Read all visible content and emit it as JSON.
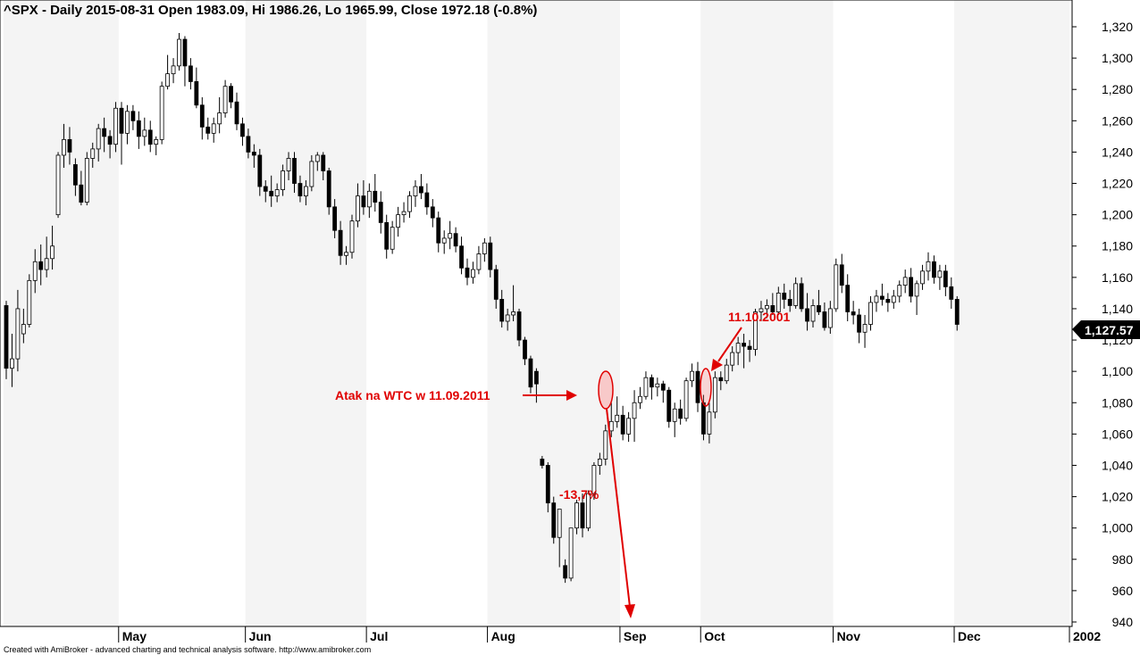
{
  "chart_data": {
    "type": "candlestick",
    "title": "^SPX - Daily 2015-08-31 Open 1983.09, Hi 1986.26, Lo 1965.99, Close 1972.18 (-0.8%)",
    "credit": "Created with AmiBroker - advanced charting and technical analysis software. http://www.amibroker.com",
    "ylim": [
      930,
      1335
    ],
    "yticks": [
      940,
      960,
      980,
      1000,
      1020,
      1040,
      1060,
      1080,
      1100,
      1120,
      1140,
      1160,
      1180,
      1200,
      1220,
      1240,
      1260,
      1280,
      1300,
      1320
    ],
    "ytick_labels": [
      "940",
      "960",
      "980",
      "1,000",
      "1,020",
      "1,040",
      "1,060",
      "1,080",
      "1,100",
      "1,120",
      "1,140",
      "1,160",
      "1,180",
      "1,200",
      "1,220",
      "1,240",
      "1,260",
      "1,280",
      "1,300",
      "1,320"
    ],
    "months": [
      {
        "label": "May",
        "index": 20
      },
      {
        "label": "Jun",
        "index": 42
      },
      {
        "label": "Jul",
        "index": 63
      },
      {
        "label": "Aug",
        "index": 84
      },
      {
        "label": "Sep",
        "index": 107
      },
      {
        "label": "Oct",
        "index": 121
      },
      {
        "label": "Nov",
        "index": 144
      },
      {
        "label": "Dec",
        "index": 165
      },
      {
        "label": "2002",
        "index": 185
      }
    ],
    "shaded_ranges": [
      [
        0,
        19
      ],
      [
        42,
        62
      ],
      [
        84,
        106
      ],
      [
        121,
        143
      ],
      [
        165,
        184
      ]
    ],
    "candles": [
      [
        1142,
        1145,
        1095,
        1102
      ],
      [
        1102,
        1124,
        1090,
        1108
      ],
      [
        1108,
        1152,
        1100,
        1140
      ],
      [
        1124,
        1140,
        1118,
        1130
      ],
      [
        1130,
        1162,
        1128,
        1158
      ],
      [
        1158,
        1178,
        1150,
        1170
      ],
      [
        1170,
        1181,
        1155,
        1165
      ],
      [
        1165,
        1186,
        1160,
        1172
      ],
      [
        1172,
        1193,
        1165,
        1180
      ],
      [
        1200,
        1240,
        1198,
        1238
      ],
      [
        1238,
        1258,
        1230,
        1248
      ],
      [
        1248,
        1256,
        1232,
        1240
      ],
      [
        1232,
        1236,
        1212,
        1219
      ],
      [
        1219,
        1228,
        1206,
        1208
      ],
      [
        1208,
        1240,
        1206,
        1236
      ],
      [
        1236,
        1246,
        1230,
        1242
      ],
      [
        1242,
        1258,
        1234,
        1255
      ],
      [
        1255,
        1262,
        1240,
        1250
      ],
      [
        1250,
        1254,
        1236,
        1245
      ],
      [
        1245,
        1272,
        1240,
        1268
      ],
      [
        1268,
        1272,
        1232,
        1252
      ],
      [
        1252,
        1270,
        1245,
        1266
      ],
      [
        1266,
        1270,
        1254,
        1260
      ],
      [
        1260,
        1266,
        1242,
        1250
      ],
      [
        1250,
        1262,
        1244,
        1254
      ],
      [
        1254,
        1260,
        1240,
        1245
      ],
      [
        1245,
        1250,
        1238,
        1248
      ],
      [
        1248,
        1285,
        1245,
        1282
      ],
      [
        1282,
        1302,
        1280,
        1290
      ],
      [
        1290,
        1300,
        1284,
        1295
      ],
      [
        1295,
        1316,
        1292,
        1312
      ],
      [
        1312,
        1314,
        1282,
        1295
      ],
      [
        1295,
        1300,
        1280,
        1285
      ],
      [
        1285,
        1294,
        1268,
        1270
      ],
      [
        1270,
        1275,
        1248,
        1256
      ],
      [
        1256,
        1262,
        1248,
        1252
      ],
      [
        1252,
        1262,
        1246,
        1258
      ],
      [
        1258,
        1275,
        1252,
        1265
      ],
      [
        1265,
        1286,
        1262,
        1282
      ],
      [
        1282,
        1284,
        1268,
        1272
      ],
      [
        1272,
        1278,
        1254,
        1258
      ],
      [
        1258,
        1262,
        1244,
        1250
      ],
      [
        1250,
        1255,
        1236,
        1240
      ],
      [
        1240,
        1245,
        1230,
        1238
      ],
      [
        1238,
        1242,
        1212,
        1218
      ],
      [
        1218,
        1222,
        1208,
        1215
      ],
      [
        1215,
        1225,
        1205,
        1212
      ],
      [
        1212,
        1220,
        1208,
        1216
      ],
      [
        1216,
        1232,
        1212,
        1228
      ],
      [
        1228,
        1240,
        1222,
        1236
      ],
      [
        1236,
        1240,
        1214,
        1220
      ],
      [
        1220,
        1225,
        1208,
        1212
      ],
      [
        1212,
        1222,
        1206,
        1218
      ],
      [
        1218,
        1238,
        1215,
        1234
      ],
      [
        1234,
        1240,
        1228,
        1238
      ],
      [
        1238,
        1240,
        1222,
        1228
      ],
      [
        1228,
        1230,
        1200,
        1205
      ],
      [
        1205,
        1210,
        1185,
        1190
      ],
      [
        1190,
        1196,
        1168,
        1174
      ],
      [
        1174,
        1180,
        1168,
        1176
      ],
      [
        1176,
        1200,
        1172,
        1196
      ],
      [
        1196,
        1220,
        1192,
        1212
      ],
      [
        1212,
        1222,
        1200,
        1205
      ],
      [
        1205,
        1220,
        1198,
        1215
      ],
      [
        1215,
        1226,
        1202,
        1208
      ],
      [
        1208,
        1215,
        1188,
        1195
      ],
      [
        1195,
        1200,
        1172,
        1178
      ],
      [
        1178,
        1196,
        1175,
        1192
      ],
      [
        1192,
        1205,
        1186,
        1200
      ],
      [
        1200,
        1208,
        1195,
        1202
      ],
      [
        1202,
        1215,
        1198,
        1212
      ],
      [
        1212,
        1222,
        1205,
        1218
      ],
      [
        1218,
        1226,
        1210,
        1214
      ],
      [
        1214,
        1220,
        1200,
        1205
      ],
      [
        1205,
        1210,
        1192,
        1198
      ],
      [
        1198,
        1202,
        1176,
        1182
      ],
      [
        1182,
        1190,
        1175,
        1185
      ],
      [
        1185,
        1196,
        1178,
        1188
      ],
      [
        1188,
        1192,
        1176,
        1180
      ],
      [
        1180,
        1186,
        1162,
        1166
      ],
      [
        1166,
        1172,
        1155,
        1160
      ],
      [
        1160,
        1170,
        1156,
        1165
      ],
      [
        1165,
        1180,
        1162,
        1175
      ],
      [
        1175,
        1185,
        1170,
        1182
      ],
      [
        1182,
        1186,
        1160,
        1165
      ],
      [
        1165,
        1168,
        1140,
        1146
      ],
      [
        1146,
        1152,
        1128,
        1132
      ],
      [
        1132,
        1140,
        1126,
        1136
      ],
      [
        1136,
        1155,
        1132,
        1138
      ],
      [
        1138,
        1140,
        1116,
        1120
      ],
      [
        1120,
        1122,
        1104,
        1108
      ],
      [
        1108,
        1110,
        1086,
        1090
      ],
      [
        1100,
        1102,
        1080,
        1092
      ],
      [
        1044,
        1046,
        1038,
        1040
      ],
      [
        1040,
        1042,
        1010,
        1016
      ],
      [
        1016,
        1020,
        990,
        994
      ],
      [
        994,
        1012,
        975,
        1012
      ],
      [
        976,
        980,
        965,
        968
      ],
      [
        968,
        1000,
        966,
        1000
      ],
      [
        1000,
        1018,
        996,
        1016
      ],
      [
        1016,
        1022,
        994,
        1000
      ],
      [
        1000,
        1024,
        998,
        1022
      ],
      [
        1022,
        1042,
        1018,
        1040
      ],
      [
        1040,
        1048,
        1034,
        1044
      ],
      [
        1044,
        1066,
        1040,
        1062
      ],
      [
        1062,
        1080,
        1058,
        1068
      ],
      [
        1068,
        1084,
        1064,
        1072
      ],
      [
        1072,
        1078,
        1056,
        1060
      ],
      [
        1060,
        1074,
        1055,
        1070
      ],
      [
        1070,
        1088,
        1055,
        1080
      ],
      [
        1080,
        1090,
        1076,
        1084
      ],
      [
        1084,
        1100,
        1082,
        1096
      ],
      [
        1096,
        1098,
        1082,
        1090
      ],
      [
        1090,
        1096,
        1084,
        1092
      ],
      [
        1092,
        1094,
        1080,
        1088
      ],
      [
        1088,
        1090,
        1064,
        1068
      ],
      [
        1068,
        1080,
        1058,
        1076
      ],
      [
        1076,
        1082,
        1066,
        1070
      ],
      [
        1070,
        1096,
        1068,
        1094
      ],
      [
        1094,
        1105,
        1090,
        1100
      ],
      [
        1100,
        1106,
        1074,
        1080
      ],
      [
        1080,
        1085,
        1056,
        1060
      ],
      [
        1060,
        1080,
        1054,
        1074
      ],
      [
        1074,
        1100,
        1070,
        1096
      ],
      [
        1096,
        1100,
        1088,
        1094
      ],
      [
        1094,
        1108,
        1092,
        1104
      ],
      [
        1104,
        1116,
        1100,
        1112
      ],
      [
        1112,
        1122,
        1104,
        1118
      ],
      [
        1118,
        1124,
        1102,
        1116
      ],
      [
        1116,
        1120,
        1106,
        1114
      ],
      [
        1114,
        1140,
        1110,
        1138
      ],
      [
        1138,
        1145,
        1132,
        1140
      ],
      [
        1140,
        1146,
        1134,
        1142
      ],
      [
        1142,
        1150,
        1136,
        1138
      ],
      [
        1138,
        1154,
        1136,
        1150
      ],
      [
        1150,
        1156,
        1140,
        1146
      ],
      [
        1146,
        1152,
        1138,
        1142
      ],
      [
        1142,
        1160,
        1140,
        1156
      ],
      [
        1156,
        1160,
        1138,
        1140
      ],
      [
        1140,
        1150,
        1126,
        1132
      ],
      [
        1132,
        1146,
        1128,
        1142
      ],
      [
        1142,
        1152,
        1136,
        1138
      ],
      [
        1138,
        1144,
        1126,
        1128
      ],
      [
        1128,
        1145,
        1124,
        1140
      ],
      [
        1140,
        1172,
        1138,
        1168
      ],
      [
        1168,
        1175,
        1150,
        1155
      ],
      [
        1155,
        1162,
        1132,
        1138
      ],
      [
        1138,
        1145,
        1130,
        1136
      ],
      [
        1136,
        1140,
        1118,
        1125
      ],
      [
        1125,
        1136,
        1115,
        1130
      ],
      [
        1130,
        1148,
        1126,
        1144
      ],
      [
        1144,
        1152,
        1138,
        1148
      ],
      [
        1148,
        1156,
        1142,
        1146
      ],
      [
        1146,
        1150,
        1138,
        1144
      ],
      [
        1144,
        1152,
        1140,
        1148
      ],
      [
        1148,
        1158,
        1144,
        1155
      ],
      [
        1155,
        1165,
        1150,
        1160
      ],
      [
        1160,
        1166,
        1144,
        1148
      ],
      [
        1148,
        1158,
        1136,
        1156
      ],
      [
        1156,
        1168,
        1152,
        1164
      ],
      [
        1164,
        1176,
        1158,
        1170
      ],
      [
        1170,
        1174,
        1156,
        1160
      ],
      [
        1160,
        1168,
        1152,
        1164
      ],
      [
        1164,
        1168,
        1148,
        1154
      ],
      [
        1154,
        1160,
        1140,
        1146
      ],
      [
        1146,
        1148,
        1126,
        1130
      ]
    ],
    "last_value_label": "1,127.57",
    "annotations": [
      {
        "text": "Atak na WTC w 11.09.2011"
      },
      {
        "text": "11.10.2001"
      },
      {
        "text": "-13,7%"
      }
    ]
  }
}
